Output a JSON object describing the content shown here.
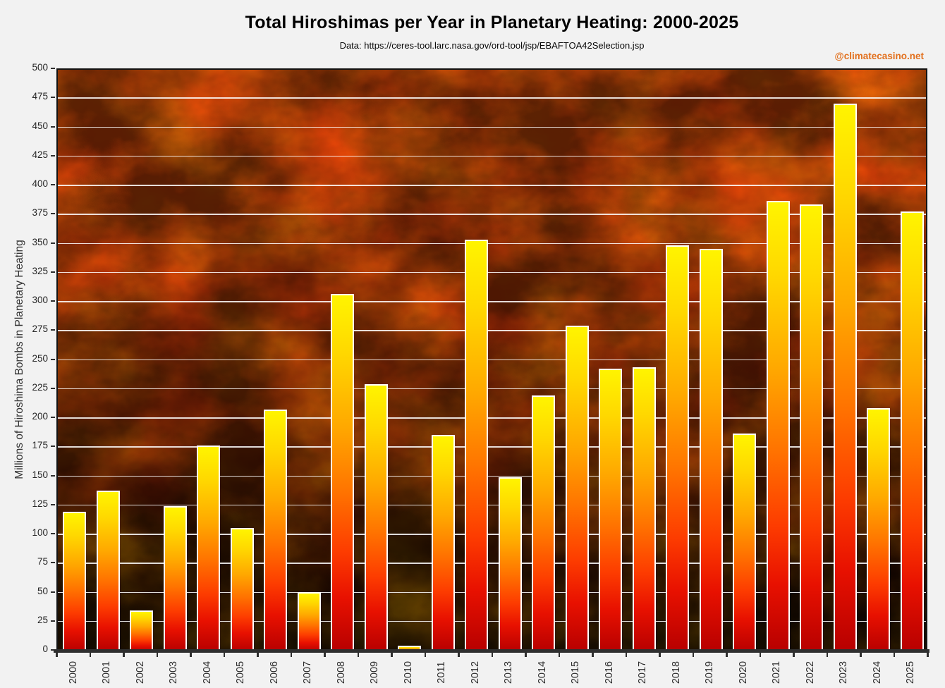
{
  "header": {
    "title": "Total Hiroshimas per Year in Planetary Heating: 2000-2025",
    "subtitle": "Data: https://ceres-tool.larc.nasa.gov/ord-tool/jsp/EBAFTOA42Selection.jsp",
    "watermark": "@climatecasino.net"
  },
  "chart_data": {
    "type": "bar",
    "title": "Total Hiroshimas per Year in Planetary Heating: 2000-2025",
    "subtitle": "Data: https://ceres-tool.larc.nasa.gov/ord-tool/jsp/EBAFTOA42Selection.jsp",
    "watermark": "@climatecasino.net",
    "xlabel": "",
    "ylabel": "Millions of Hiroshima Bombs in Planetary Heating",
    "categories": [
      "2000",
      "2001",
      "2002",
      "2003",
      "2004",
      "2005",
      "2006",
      "2007",
      "2008",
      "2009",
      "2010",
      "2011",
      "2012",
      "2013",
      "2014",
      "2015",
      "2016",
      "2017",
      "2018",
      "2019",
      "2020",
      "2021",
      "2022",
      "2023",
      "2024",
      "2025"
    ],
    "values": [
      120,
      138,
      35,
      125,
      177,
      106,
      208,
      51,
      307,
      230,
      5,
      186,
      354,
      150,
      220,
      280,
      243,
      244,
      349,
      346,
      187,
      387,
      384,
      471,
      209,
      378
    ],
    "ylim": [
      0,
      500
    ],
    "ytick_step": 25,
    "grid": "horizontal",
    "legend": "none",
    "colors": {
      "figure_bg": "#f2f2f2",
      "text": "#262626",
      "watermark": "#e2701d",
      "grid": "#ffffff",
      "bar_border": "#ffffff",
      "bar_gradient": [
        "#fff400",
        "#ffd800",
        "#ffa800",
        "#ff7400",
        "#fd3c00",
        "#e81100",
        "#b70000"
      ],
      "fire_bg_top": "#e84208",
      "fire_bg_bottom": "#070100"
    }
  }
}
